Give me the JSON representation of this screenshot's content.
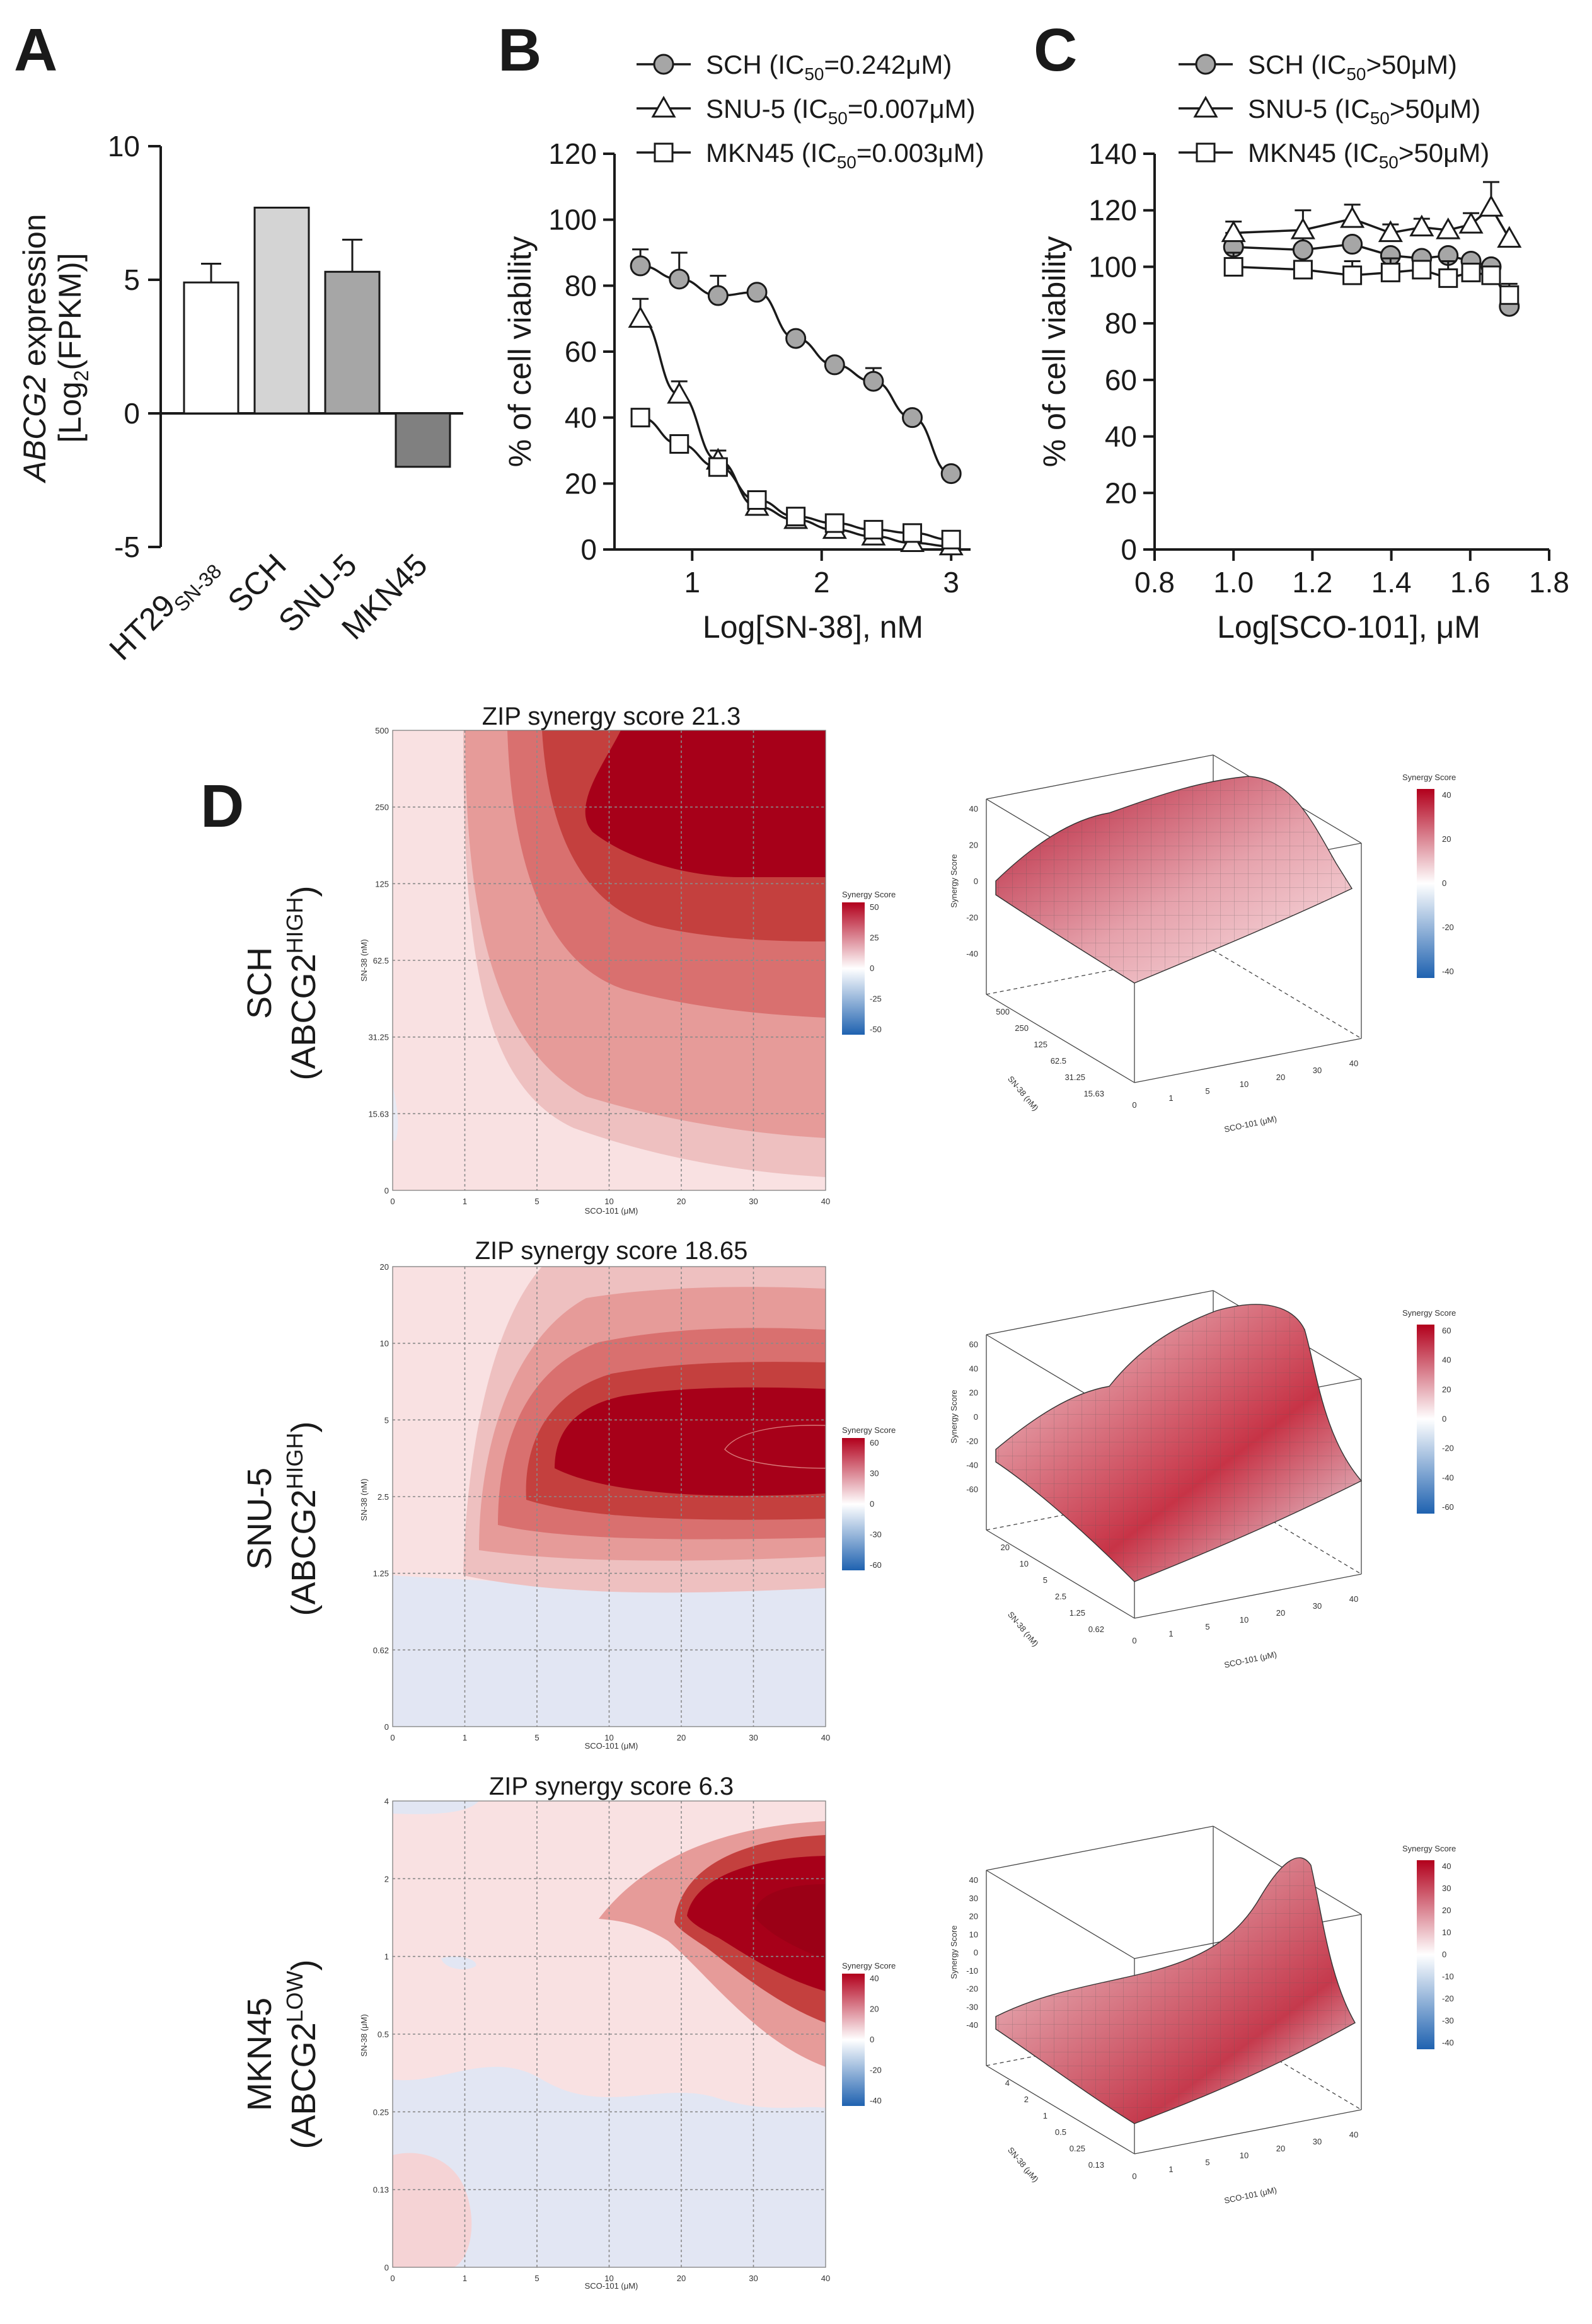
{
  "panels": {
    "A": "A",
    "B": "B",
    "C": "C",
    "D": "D"
  },
  "chart_data": [
    {
      "id": "A",
      "type": "bar",
      "ylabel_italic": "ABCG2",
      "ylabel_rest": " expression",
      "ylabel_line2": "[Log2(FPKM)]",
      "ylim": [
        -5,
        10
      ],
      "yticks": [
        "-5",
        "0",
        "5",
        "10"
      ],
      "categories": [
        "HT29SN-38",
        "SCH",
        "SNU-5",
        "MKN45"
      ],
      "cat_main": [
        "HT29",
        "SCH",
        "SNU-5",
        "MKN45"
      ],
      "cat_sub": [
        "SN-38",
        "",
        "",
        ""
      ],
      "values": [
        4.9,
        7.7,
        5.3,
        -2.0
      ],
      "errors": [
        0.7,
        0,
        1.2,
        0
      ],
      "colors": [
        "#ffffff",
        "#d4d4d4",
        "#a6a6a6",
        "#808080"
      ]
    },
    {
      "id": "B",
      "type": "line",
      "xlabel": "Log[SN-38], nM",
      "ylabel": "% of cell viability",
      "xlim": [
        0.4,
        3.15
      ],
      "ylim": [
        0,
        120
      ],
      "xticks": [
        "1",
        "2",
        "3"
      ],
      "yticks": [
        "0",
        "20",
        "40",
        "60",
        "80",
        "100",
        "120"
      ],
      "series": [
        {
          "name": "SCH (IC50=0.242μM)",
          "label_main": "SCH (IC",
          "label_sub": "50",
          "label_rest": "=0.242μM)",
          "marker": "circle",
          "x": [
            0.6,
            0.9,
            1.2,
            1.5,
            1.8,
            2.1,
            2.4,
            2.7,
            3.0
          ],
          "y": [
            86,
            82,
            77,
            78,
            64,
            56,
            51,
            40,
            23
          ],
          "err": [
            5,
            8,
            6,
            0,
            0,
            0,
            4,
            0,
            0
          ]
        },
        {
          "name": "SNU-5 (IC50=0.007μM)",
          "label_main": "SNU-5 (IC",
          "label_sub": "50",
          "label_rest": "=0.007μM)",
          "marker": "triangle",
          "x": [
            0.6,
            0.9,
            1.2,
            1.5,
            1.8,
            2.1,
            2.4,
            2.7,
            3.0
          ],
          "y": [
            70,
            47,
            27,
            13,
            9,
            6,
            4,
            2,
            1
          ],
          "err": [
            6,
            4,
            3,
            2,
            2,
            0,
            0,
            0,
            0
          ]
        },
        {
          "name": "MKN45 (IC50=0.003μM)",
          "label_main": "MKN45 (IC",
          "label_sub": "50",
          "label_rest": "=0.003μM)",
          "marker": "square",
          "x": [
            0.6,
            0.9,
            1.2,
            1.5,
            1.8,
            2.1,
            2.4,
            2.7,
            3.0
          ],
          "y": [
            40,
            32,
            25,
            15,
            10,
            8,
            6,
            5,
            3
          ],
          "err": [
            0,
            0,
            0,
            0,
            0,
            0,
            0,
            0,
            0
          ]
        }
      ]
    },
    {
      "id": "C",
      "type": "line",
      "xlabel": "Log[SCO-101], μM",
      "ylabel": "% of cell viability",
      "xlim": [
        0.8,
        1.8
      ],
      "ylim": [
        0,
        140
      ],
      "xticks": [
        "0.8",
        "1.0",
        "1.2",
        "1.4",
        "1.6",
        "1.8"
      ],
      "yticks": [
        "0",
        "20",
        "40",
        "60",
        "80",
        "100",
        "120",
        "140"
      ],
      "series": [
        {
          "name": "SCH (IC50>50μM)",
          "label_main": "SCH (IC",
          "label_sub": "50",
          "label_rest": ">50μM)",
          "marker": "circle",
          "x": [
            1.0,
            1.176,
            1.301,
            1.398,
            1.477,
            1.544,
            1.602,
            1.653,
            1.699
          ],
          "y": [
            107,
            106,
            108,
            104,
            103,
            104,
            102,
            100,
            86
          ],
          "err": [
            5,
            6,
            0,
            0,
            0,
            0,
            0,
            0,
            8
          ]
        },
        {
          "name": "SNU-5 (IC50>50μM)",
          "label_main": "SNU-5 (IC",
          "label_sub": "50",
          "label_rest": ">50μM)",
          "marker": "triangle",
          "x": [
            1.0,
            1.176,
            1.301,
            1.398,
            1.477,
            1.544,
            1.602,
            1.653,
            1.699
          ],
          "y": [
            112,
            113,
            117,
            112,
            114,
            113,
            115,
            121,
            110
          ],
          "err": [
            4,
            7,
            5,
            3,
            3,
            0,
            4,
            9,
            0
          ]
        },
        {
          "name": "MKN45 (IC50>50μM)",
          "label_main": "MKN45 (IC",
          "label_sub": "50",
          "label_rest": ">50μM)",
          "marker": "square",
          "x": [
            1.0,
            1.176,
            1.301,
            1.398,
            1.477,
            1.544,
            1.602,
            1.653,
            1.699
          ],
          "y": [
            100,
            99,
            97,
            98,
            99,
            96,
            98,
            97,
            90
          ],
          "err": [
            5,
            0,
            5,
            5,
            0,
            6,
            0,
            0,
            0
          ]
        }
      ]
    },
    {
      "id": "D1",
      "type": "heatmap",
      "title": "ZIP synergy score 21.3",
      "row_main": "SCH",
      "row_sub": "(ABCG2",
      "row_sup": "HIGH",
      "row_close": ")",
      "xlabel": "SCO-101 (μM)",
      "ylabel": "SN-38 (nM)",
      "xticks": [
        "0",
        "1",
        "5",
        "10",
        "20",
        "30",
        "40"
      ],
      "yticks": [
        "0",
        "15.63",
        "31.25",
        "62.5",
        "125",
        "250",
        "500"
      ],
      "legend_title": "Synergy Score",
      "legend_ticks": [
        "50",
        "25",
        "0",
        "-25",
        "-50"
      ],
      "surf_z": [
        "40",
        "20",
        "0",
        "-20",
        "-40"
      ],
      "surf_y": [
        "500",
        "250",
        "125",
        "62.5",
        "31.25",
        "15.63"
      ],
      "surf_x": [
        "0",
        "1",
        "5",
        "10",
        "20",
        "30",
        "40"
      ],
      "surf_ylabel": "SN-38 (nM)",
      "surf_xlabel": "SCO-101 (μM)",
      "surf_zlabel": "Synergy Score"
    },
    {
      "id": "D2",
      "type": "heatmap",
      "title": "ZIP synergy score 18.65",
      "row_main": "SNU-5",
      "row_sub": "(ABCG2",
      "row_sup": "HIGH",
      "row_close": ")",
      "xlabel": "SCO-101 (μM)",
      "ylabel": "SN-38 (nM)",
      "xticks": [
        "0",
        "1",
        "5",
        "10",
        "20",
        "30",
        "40"
      ],
      "yticks": [
        "0",
        "0.62",
        "1.25",
        "2.5",
        "5",
        "10",
        "20"
      ],
      "legend_title": "Synergy Score",
      "legend_ticks": [
        "60",
        "30",
        "0",
        "-30",
        "-60"
      ],
      "surf_z": [
        "60",
        "40",
        "20",
        "0",
        "-20",
        "-40",
        "-60"
      ],
      "surf_y": [
        "20",
        "10",
        "5",
        "2.5",
        "1.25",
        "0.62"
      ],
      "surf_x": [
        "0",
        "1",
        "5",
        "10",
        "20",
        "30",
        "40"
      ],
      "surf_legend": [
        "60",
        "40",
        "20",
        "0",
        "-20",
        "-40",
        "-60"
      ],
      "surf_ylabel": "SN-38 (nM)",
      "surf_xlabel": "SCO-101 (μM)",
      "surf_zlabel": "Synergy Score"
    },
    {
      "id": "D3",
      "type": "heatmap",
      "title": "ZIP synergy score 6.3",
      "row_main": "MKN45",
      "row_sub": "(ABCG2",
      "row_sup": "LOW",
      "row_close": ")",
      "xlabel": "SCO-101 (μM)",
      "ylabel": "SN-38 (μM)",
      "xticks": [
        "0",
        "1",
        "5",
        "10",
        "20",
        "30",
        "40"
      ],
      "yticks": [
        "0",
        "0.13",
        "0.25",
        "0.5",
        "1",
        "2",
        "4"
      ],
      "legend_title": "Synergy Score",
      "legend_ticks": [
        "40",
        "20",
        "0",
        "-20",
        "-40"
      ],
      "surf_z": [
        "40",
        "30",
        "20",
        "10",
        "0",
        "-10",
        "-20",
        "-30",
        "-40"
      ],
      "surf_y": [
        "4",
        "2",
        "1",
        "0.5",
        "0.25",
        "0.13"
      ],
      "surf_x": [
        "0",
        "1",
        "5",
        "10",
        "20",
        "30",
        "40"
      ],
      "surf_legend": [
        "40",
        "30",
        "20",
        "10",
        "0",
        "-10",
        "-20",
        "-30",
        "-40"
      ],
      "surf_ylabel": "SN-38 (μM)",
      "surf_xlabel": "SCO-101 (μM)",
      "surf_zlabel": "Synergy Score"
    }
  ]
}
